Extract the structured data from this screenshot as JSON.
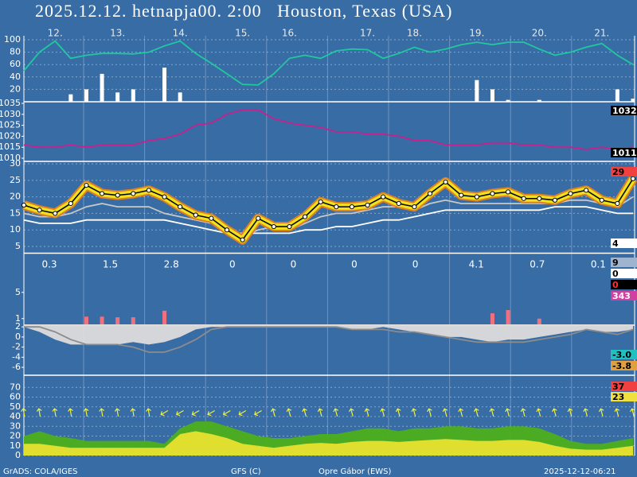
{
  "title": "2025.12.12. hetnapja00. 2:00   Houston, Texas (USA)",
  "footer": [
    "GrADS: COLA/IGES",
    "GFS (C)",
    "Opre Gábor (EWS)",
    "2025-12-12-06:21"
  ],
  "chart_data": [
    {
      "type": "line",
      "ylim": [
        0,
        100
      ],
      "yticks": [
        20,
        40,
        60,
        80,
        100
      ],
      "grid": true,
      "categories": [
        null,
        null,
        "12.",
        null,
        null,
        null,
        "13.",
        null,
        null,
        null,
        "14.",
        null,
        null,
        null,
        "15.",
        null,
        null,
        "16.",
        null,
        null,
        null,
        null,
        "17.",
        null,
        null,
        "18.",
        null,
        null,
        null,
        "19.",
        null,
        null,
        null,
        "20.",
        null,
        null,
        null,
        "21.",
        null,
        null
      ],
      "series": [
        {
          "type": "line",
          "color": "#20c8a0",
          "values": [
            50,
            80,
            98,
            70,
            75,
            78,
            78,
            77,
            80,
            90,
            98,
            78,
            62,
            45,
            28,
            27,
            45,
            70,
            75,
            70,
            82,
            85,
            84,
            70,
            78,
            88,
            80,
            85,
            92,
            96,
            92,
            96,
            96,
            85,
            75,
            80,
            88,
            94,
            75,
            60
          ]
        },
        {
          "type": "bar",
          "color": "#ffffff",
          "values": [
            0,
            0,
            0,
            12,
            20,
            45,
            15,
            20,
            0,
            55,
            15,
            0,
            0,
            0,
            0,
            0,
            0,
            0,
            0,
            0,
            0,
            0,
            0,
            0,
            0,
            0,
            0,
            0,
            0,
            35,
            20,
            3,
            0,
            3,
            0,
            0,
            0,
            0,
            20,
            5
          ]
        }
      ]
    },
    {
      "type": "line",
      "ylim": [
        1010,
        1035
      ],
      "yticks": [
        1010,
        1015,
        1020,
        1025,
        1030,
        1035
      ],
      "grid": false,
      "series": [
        {
          "type": "line",
          "color": "#c8208c",
          "values": [
            1016,
            1015,
            1015,
            1016,
            1015,
            1016,
            1016,
            1016,
            1018,
            1019,
            1021,
            1025,
            1026,
            1030,
            1032,
            1032,
            1028,
            1026,
            1025,
            1024,
            1022,
            1022,
            1021,
            1021,
            1020,
            1018,
            1018,
            1016,
            1016,
            1016,
            1017,
            1017,
            1016,
            1016,
            1015,
            1015,
            1014,
            1015,
            1014,
            1015
          ]
        }
      ],
      "right_labels": [
        {
          "value": 1032,
          "color": "#000000",
          "text_color": "#ffffff"
        },
        {
          "value": 1011,
          "color": "#000000",
          "text_color": "#ffffff"
        }
      ]
    },
    {
      "type": "line",
      "ylim": [
        3,
        30.5
      ],
      "yticks": [
        5,
        10,
        15,
        20,
        25,
        30
      ],
      "grid": true,
      "series": [
        {
          "type": "line",
          "color": "#c8c8c8",
          "values": [
            15,
            14,
            14,
            15,
            17,
            18,
            17,
            17,
            17,
            15,
            14,
            13,
            12,
            10,
            8,
            10,
            11,
            10,
            12,
            14,
            15,
            15,
            16,
            17,
            17,
            16,
            18,
            19,
            18,
            18,
            18,
            18,
            18,
            18,
            18,
            19,
            19,
            18,
            17,
            20
          ]
        },
        {
          "type": "line",
          "color": "#ffffff",
          "values": [
            13,
            12,
            12,
            12,
            13,
            13,
            13,
            13,
            13,
            13,
            12,
            11,
            10,
            9,
            9,
            9,
            9,
            9,
            10,
            10,
            11,
            11,
            12,
            13,
            13,
            14,
            15,
            16,
            16,
            16,
            16,
            16,
            16,
            16,
            17,
            17,
            17,
            16,
            15,
            15
          ]
        },
        {
          "type": "line",
          "color": "#000000",
          "band_color": "#f0e020",
          "band_edge": "#e08020",
          "markers": true,
          "values": [
            17.5,
            16,
            15,
            18,
            23.5,
            21,
            20.5,
            21,
            22,
            20,
            17,
            14.5,
            13.5,
            10,
            7,
            13.5,
            11,
            11,
            14,
            18.5,
            17,
            17,
            17.5,
            20,
            18,
            17,
            21,
            24.5,
            20.5,
            20,
            21,
            21.5,
            19.5,
            19.5,
            19,
            21,
            22,
            19,
            18,
            25.5
          ]
        }
      ],
      "right_labels": [
        {
          "value": 29,
          "color": "#f04040",
          "text_color": "#000000"
        },
        {
          "value": 4,
          "color": "#ffffff",
          "text_color": "#000000"
        }
      ]
    },
    {
      "type": "bar",
      "ylim": [
        0,
        10
      ],
      "yticks": [
        1,
        5
      ],
      "grid": false,
      "daily_totals": [
        0.3,
        1.5,
        2.8,
        0,
        0,
        0,
        0,
        4.1,
        0.7,
        0.1
      ],
      "series": [
        {
          "type": "bar",
          "color": "#f07080",
          "values": [
            0,
            0,
            0,
            0,
            1.3,
            1.3,
            1.2,
            1.2,
            0,
            2.2,
            0,
            0,
            0,
            0,
            0,
            0,
            0,
            0,
            0,
            0,
            0,
            0,
            0,
            0,
            0,
            0,
            0,
            0,
            0,
            0,
            1.8,
            2.3,
            0,
            1,
            0,
            0,
            0,
            0,
            0,
            0
          ]
        }
      ],
      "right_labels": [
        {
          "value": 9,
          "color": "#a0b4d0",
          "text_color": "#000000"
        },
        {
          "value": 0,
          "color": "#ffffff",
          "text_color": "#000000"
        },
        {
          "value": 0,
          "color": "#000000",
          "text_color": "#ff3030"
        },
        {
          "value": 343,
          "color": "#d040a0",
          "text_color": "#ffffff"
        }
      ]
    },
    {
      "type": "area",
      "ylim": [
        -7,
        2.5
      ],
      "yticks": [
        -6,
        -4,
        -2,
        0,
        2
      ],
      "grid": false,
      "series": [
        {
          "type": "area",
          "baseline": "top",
          "color": "#dcdcdc",
          "values": [
            2,
            1,
            -0.5,
            -1.5,
            -1.5,
            -1.5,
            -1.5,
            -1,
            -1.5,
            -1,
            0,
            1.5,
            2,
            2,
            2,
            2,
            2,
            2,
            2,
            2,
            2,
            1.5,
            1.5,
            2,
            1.5,
            1,
            0.5,
            0,
            0,
            -0.5,
            -1,
            -0.5,
            -0.5,
            0,
            0.5,
            1,
            1.5,
            1,
            1,
            1.5
          ]
        },
        {
          "type": "line",
          "color": "#8c8c8c",
          "values": [
            2,
            2,
            1,
            -0.5,
            -1.5,
            -1.5,
            -1.5,
            -2,
            -3,
            -3,
            -2,
            -0.5,
            1.5,
            2,
            2,
            2,
            2,
            2,
            2,
            2,
            2,
            1.5,
            1.5,
            1.5,
            1,
            1,
            0.5,
            0,
            -0.5,
            -1,
            -1,
            -1,
            -1,
            -0.5,
            0,
            0.5,
            1.5,
            1,
            0.5,
            1.5
          ]
        }
      ],
      "right_labels": [
        {
          "value": -3,
          "label": "-3.0",
          "color": "#20c0c0",
          "text_color": "#000000"
        },
        {
          "value": -3.8,
          "color": "#e0a040",
          "text_color": "#000000"
        }
      ]
    },
    {
      "type": "area",
      "ylim": [
        0,
        80
      ],
      "yticks": [
        0,
        10,
        20,
        30,
        40,
        50,
        60,
        70
      ],
      "grid": true,
      "wind_direction": [
        350,
        350,
        350,
        350,
        350,
        350,
        350,
        350,
        350,
        240,
        240,
        240,
        240,
        240,
        240,
        240,
        345,
        345,
        345,
        345,
        345,
        345,
        345,
        345,
        345,
        345,
        345,
        345,
        345,
        345,
        345,
        345,
        345,
        345,
        345,
        345,
        345,
        345,
        345,
        345
      ],
      "arrow_color": "#f0f040",
      "series": [
        {
          "type": "area",
          "color": "#4caf1a",
          "values": [
            20,
            25,
            20,
            18,
            15,
            15,
            15,
            15,
            15,
            12,
            28,
            35,
            35,
            30,
            25,
            20,
            18,
            18,
            20,
            22,
            22,
            25,
            28,
            28,
            25,
            28,
            28,
            30,
            30,
            28,
            28,
            30,
            30,
            28,
            22,
            15,
            12,
            12,
            15,
            18
          ]
        },
        {
          "type": "area",
          "color": "#e8e030",
          "values": [
            12,
            12,
            10,
            8,
            8,
            8,
            8,
            8,
            8,
            8,
            22,
            25,
            22,
            18,
            12,
            10,
            8,
            10,
            12,
            13,
            12,
            14,
            15,
            15,
            14,
            15,
            16,
            17,
            16,
            15,
            15,
            16,
            16,
            14,
            10,
            7,
            6,
            6,
            8,
            10
          ]
        }
      ],
      "right_labels": [
        {
          "value": 37,
          "color": "#f04040",
          "text_color": "#000000"
        },
        {
          "value": 23,
          "color": "#f0e040",
          "text_color": "#000000"
        }
      ]
    }
  ]
}
